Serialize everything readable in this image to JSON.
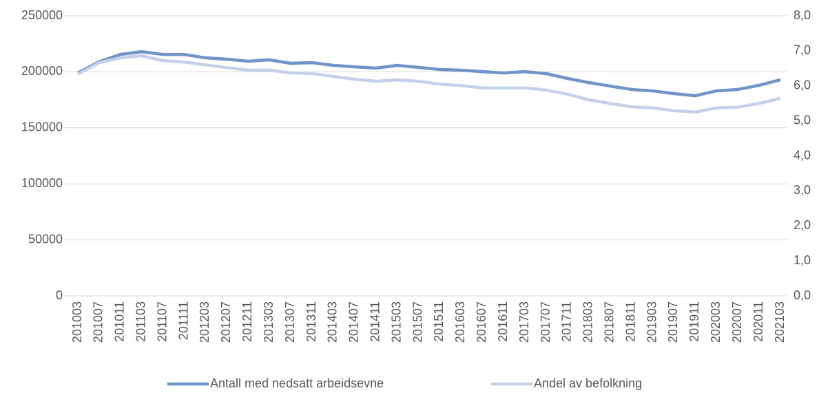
{
  "chart_data": {
    "type": "line",
    "categories": [
      "201003",
      "201007",
      "201011",
      "201103",
      "201107",
      "201111",
      "201203",
      "201207",
      "201211",
      "201303",
      "201307",
      "201311",
      "201403",
      "201407",
      "201411",
      "201503",
      "201507",
      "201511",
      "201603",
      "201607",
      "201611",
      "201703",
      "201707",
      "201711",
      "201803",
      "201807",
      "201811",
      "201903",
      "201907",
      "201911",
      "202003",
      "202007",
      "202011",
      "202103"
    ],
    "series": [
      {
        "name": "Antall med nedsatt arbeidsevne",
        "color": "#7094c8",
        "values": [
          199000,
          209000,
          215500,
          218000,
          215500,
          215500,
          212500,
          211300,
          209500,
          210700,
          207600,
          208200,
          205800,
          204500,
          203300,
          205800,
          204000,
          202100,
          201500,
          200200,
          199000,
          200200,
          198400,
          194100,
          190400,
          187300,
          184300,
          183000,
          180600,
          178700,
          183000,
          184300,
          188000,
          192900
        ]
      },
      {
        "name": "Andel av befolkning",
        "color": "#c5d1eb",
        "axis": "y2",
        "values": [
          6.33,
          6.66,
          6.8,
          6.86,
          6.72,
          6.68,
          6.6,
          6.52,
          6.45,
          6.45,
          6.37,
          6.35,
          6.27,
          6.19,
          6.13,
          6.17,
          6.13,
          6.05,
          6.01,
          5.94,
          5.94,
          5.94,
          5.88,
          5.76,
          5.6,
          5.5,
          5.4,
          5.37,
          5.29,
          5.25,
          5.37,
          5.39,
          5.5,
          5.64
        ]
      }
    ],
    "ylim": [
      0,
      250000
    ],
    "yticks": [
      0,
      50000,
      100000,
      150000,
      200000,
      250000
    ],
    "y2lim": [
      0,
      8
    ],
    "y2ticks": [
      {
        "value": 0,
        "label": "0,0"
      },
      {
        "value": 1,
        "label": "1,0"
      },
      {
        "value": 2,
        "label": "2,0"
      },
      {
        "value": 3,
        "label": "3,0"
      },
      {
        "value": 4,
        "label": "4,0"
      },
      {
        "value": 5,
        "label": "5,0"
      },
      {
        "value": 6,
        "label": "6,0"
      },
      {
        "value": 7,
        "label": "7,0"
      },
      {
        "value": 8,
        "label": "8,0"
      }
    ],
    "grid": true,
    "legend": "bottom"
  }
}
